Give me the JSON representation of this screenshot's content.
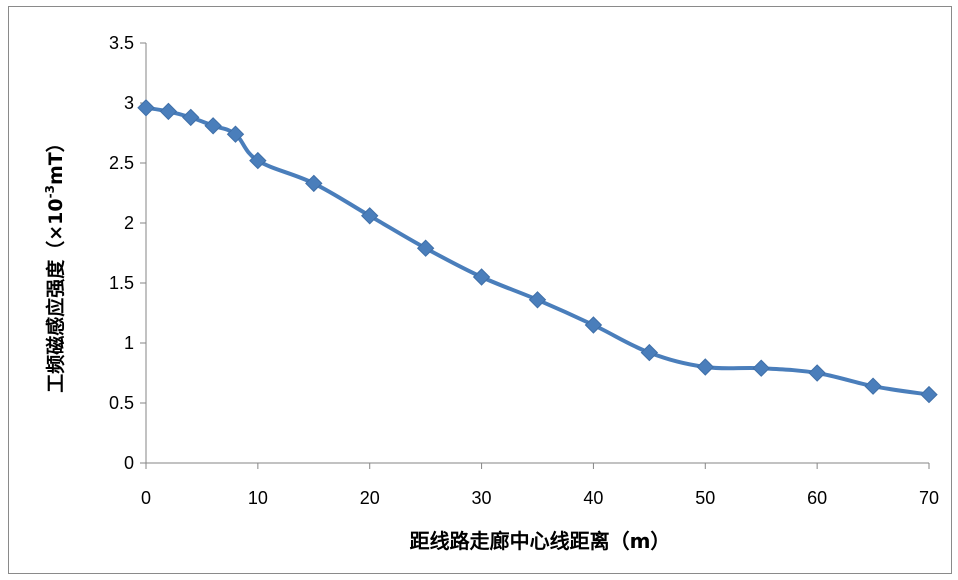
{
  "chart_data": {
    "type": "line",
    "title": "",
    "xlabel": "距线路走廊中心线距离（m）",
    "ylabel_main": "工频磁感应强度（×10",
    "ylabel_sup": "-3",
    "ylabel_unit": "mT）",
    "xlim": [
      0,
      70
    ],
    "ylim": [
      0,
      3.5
    ],
    "x_ticks": [
      "0",
      "10",
      "20",
      "30",
      "40",
      "50",
      "60",
      "70"
    ],
    "y_ticks": [
      "0",
      "0.5",
      "1",
      "1.5",
      "2",
      "2.5",
      "3",
      "3.5"
    ],
    "grid": false,
    "legend": "none",
    "series": [
      {
        "x": [
          0,
          2,
          4,
          6,
          8,
          10,
          15,
          20,
          25,
          30,
          35,
          40,
          45,
          50,
          55,
          60,
          65,
          70
        ],
        "y": [
          2.96,
          2.93,
          2.88,
          2.81,
          2.74,
          2.52,
          2.33,
          2.06,
          1.79,
          1.55,
          1.36,
          1.15,
          0.92,
          0.8,
          0.79,
          0.75,
          0.64,
          0.57
        ],
        "color": "#4a7ebb",
        "marker": "diamond"
      }
    ]
  }
}
